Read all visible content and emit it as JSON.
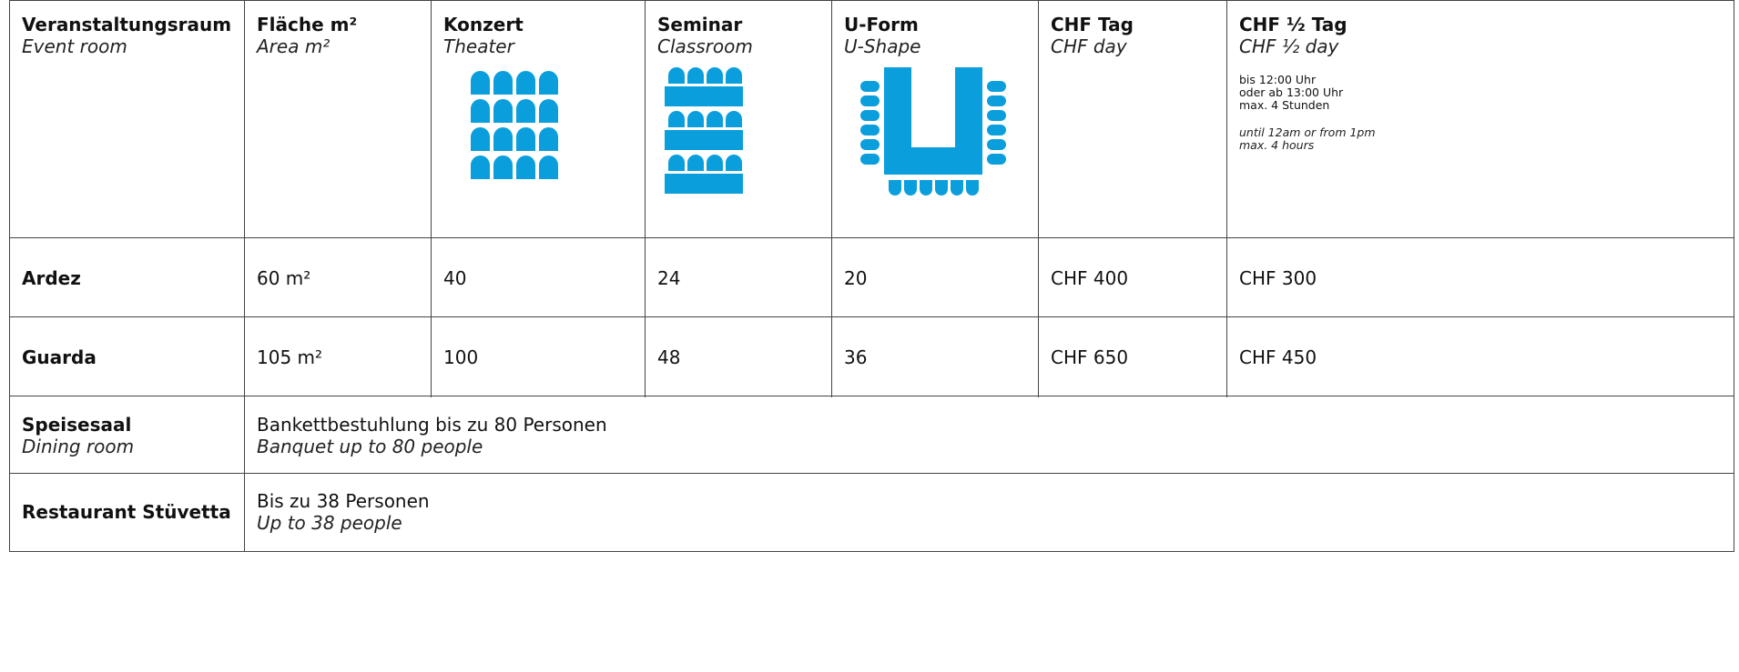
{
  "table": {
    "header": [
      {
        "de": "Veranstaltungsraum",
        "en": "Event room"
      },
      {
        "de": "Fläche m²",
        "en": "Area m²"
      },
      {
        "de": "Konzert",
        "en": "Theater"
      },
      {
        "de": "Seminar",
        "en": "Classroom"
      },
      {
        "de": "U-Form",
        "en": "U-Shape"
      },
      {
        "de": "CHF Tag",
        "en": "CHF day"
      },
      {
        "de": "CHF ½ Tag",
        "en": "CHF ½ day"
      }
    ],
    "note": {
      "de": [
        "bis 12:00 Uhr",
        "oder ab 13:00 Uhr",
        "max. 4 Stunden"
      ],
      "en": [
        "until 12am or from 1pm",
        "max. 4 hours"
      ]
    },
    "rows": [
      {
        "name": "Ardez",
        "cells": [
          "60 m²",
          "40",
          "24",
          "20",
          "CHF 400",
          "CHF 300"
        ]
      },
      {
        "name": "Guarda",
        "cells": [
          "105 m²",
          "100",
          "48",
          "36",
          "CHF 650",
          "CHF 450"
        ]
      }
    ],
    "spans": [
      {
        "name": "Speisesaal",
        "name_en": "Dining room",
        "de": "Bankettbestuhlung bis zu 80 Personen",
        "en": "Banquet up to 80 people"
      },
      {
        "name": "Restaurant Stüvetta",
        "de": "Bis zu 38 Personen",
        "en": "Up to 38 people"
      }
    ]
  }
}
